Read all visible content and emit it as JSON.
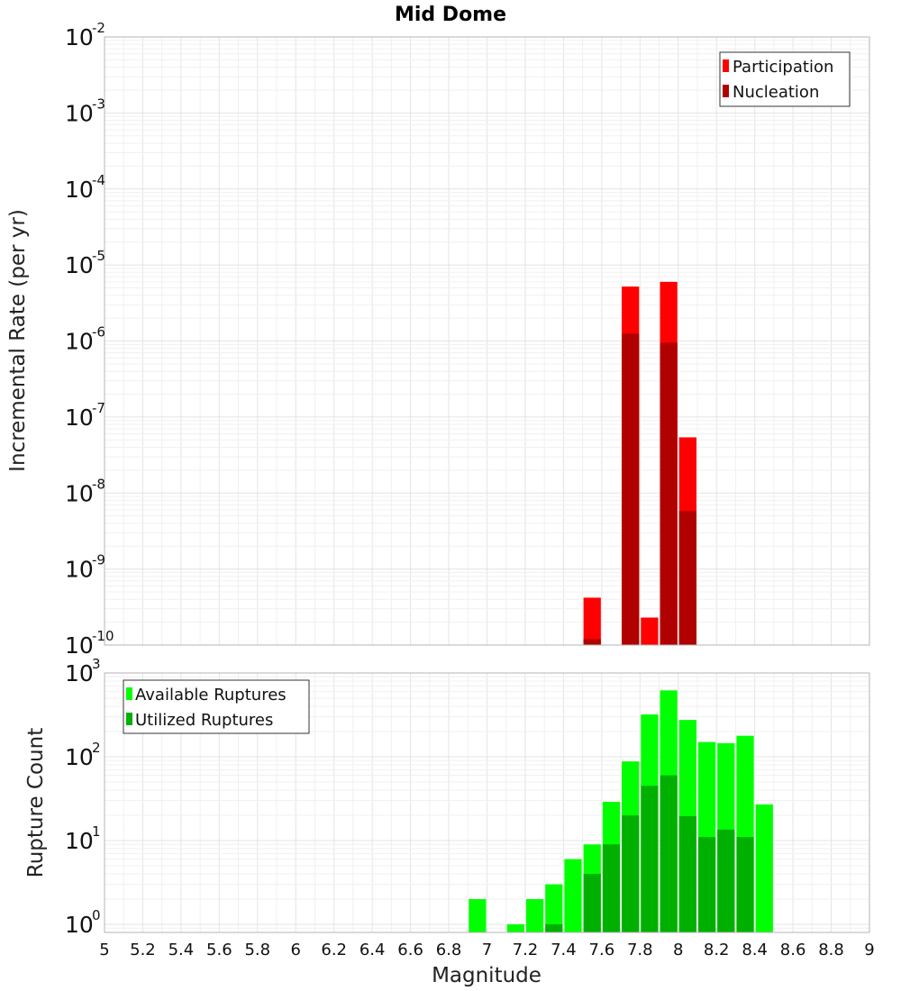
{
  "chart_data": [
    {
      "type": "bar",
      "title": "Mid Dome",
      "xlabel": "",
      "ylabel": "Incremental Rate (per yr)",
      "yscale": "log",
      "xlim": [
        5,
        9
      ],
      "ylim": [
        1e-10,
        0.01
      ],
      "ytick_labels": [
        {
          "base": "10",
          "exp": "-10"
        },
        {
          "base": "10",
          "exp": "-9"
        },
        {
          "base": "10",
          "exp": "-8"
        },
        {
          "base": "10",
          "exp": "-7"
        },
        {
          "base": "10",
          "exp": "-6"
        },
        {
          "base": "10",
          "exp": "-5"
        },
        {
          "base": "10",
          "exp": "-4"
        },
        {
          "base": "10",
          "exp": "-3"
        },
        {
          "base": "10",
          "exp": "-2"
        }
      ],
      "legend_position": "top-right",
      "bar_width": 0.1,
      "series": [
        {
          "name": "Participation",
          "color": "#ff0000",
          "x": [
            7.55,
            7.75,
            7.85,
            7.95,
            8.05
          ],
          "values": [
            4.2e-10,
            5.2e-06,
            2.3e-10,
            6e-06,
            5.4e-08
          ]
        },
        {
          "name": "Nucleation",
          "color": "#b00000",
          "x": [
            7.55,
            7.75,
            7.95,
            8.05
          ],
          "values": [
            1.2e-10,
            1.25e-06,
            9.5e-07,
            5.8e-09
          ]
        }
      ]
    },
    {
      "type": "bar",
      "title": "",
      "xlabel": "Magnitude",
      "ylabel": "Rupture Count",
      "yscale": "log",
      "xlim": [
        5,
        9
      ],
      "ylim": [
        0.8,
        1000
      ],
      "ytick_labels": [
        {
          "base": "10",
          "exp": "0"
        },
        {
          "base": "10",
          "exp": "1"
        },
        {
          "base": "10",
          "exp": "2"
        },
        {
          "base": "10",
          "exp": "3"
        }
      ],
      "xtick_labels": [
        "5",
        "5.2",
        "5.4",
        "5.6",
        "5.8",
        "6",
        "6.2",
        "6.4",
        "6.6",
        "6.8",
        "7",
        "7.2",
        "7.4",
        "7.6",
        "7.8",
        "8",
        "8.2",
        "8.4",
        "8.6",
        "8.8",
        "9"
      ],
      "legend_position": "top-left",
      "bar_width": 0.1,
      "series": [
        {
          "name": "Available Ruptures",
          "color": "#00ff00",
          "x": [
            6.95,
            7.15,
            7.25,
            7.35,
            7.45,
            7.55,
            7.65,
            7.75,
            7.85,
            7.95,
            8.05,
            8.15,
            8.25,
            8.35,
            8.45
          ],
          "values": [
            2,
            1,
            2,
            3,
            6,
            9,
            29,
            88,
            320,
            620,
            275,
            150,
            145,
            178,
            27
          ]
        },
        {
          "name": "Utilized Ruptures",
          "color": "#00b000",
          "x": [
            7.35,
            7.55,
            7.65,
            7.75,
            7.85,
            7.95,
            8.05,
            8.15,
            8.25,
            8.35
          ],
          "values": [
            1,
            4,
            9,
            20,
            45,
            60,
            19.5,
            11,
            13.5,
            11
          ]
        }
      ]
    }
  ]
}
